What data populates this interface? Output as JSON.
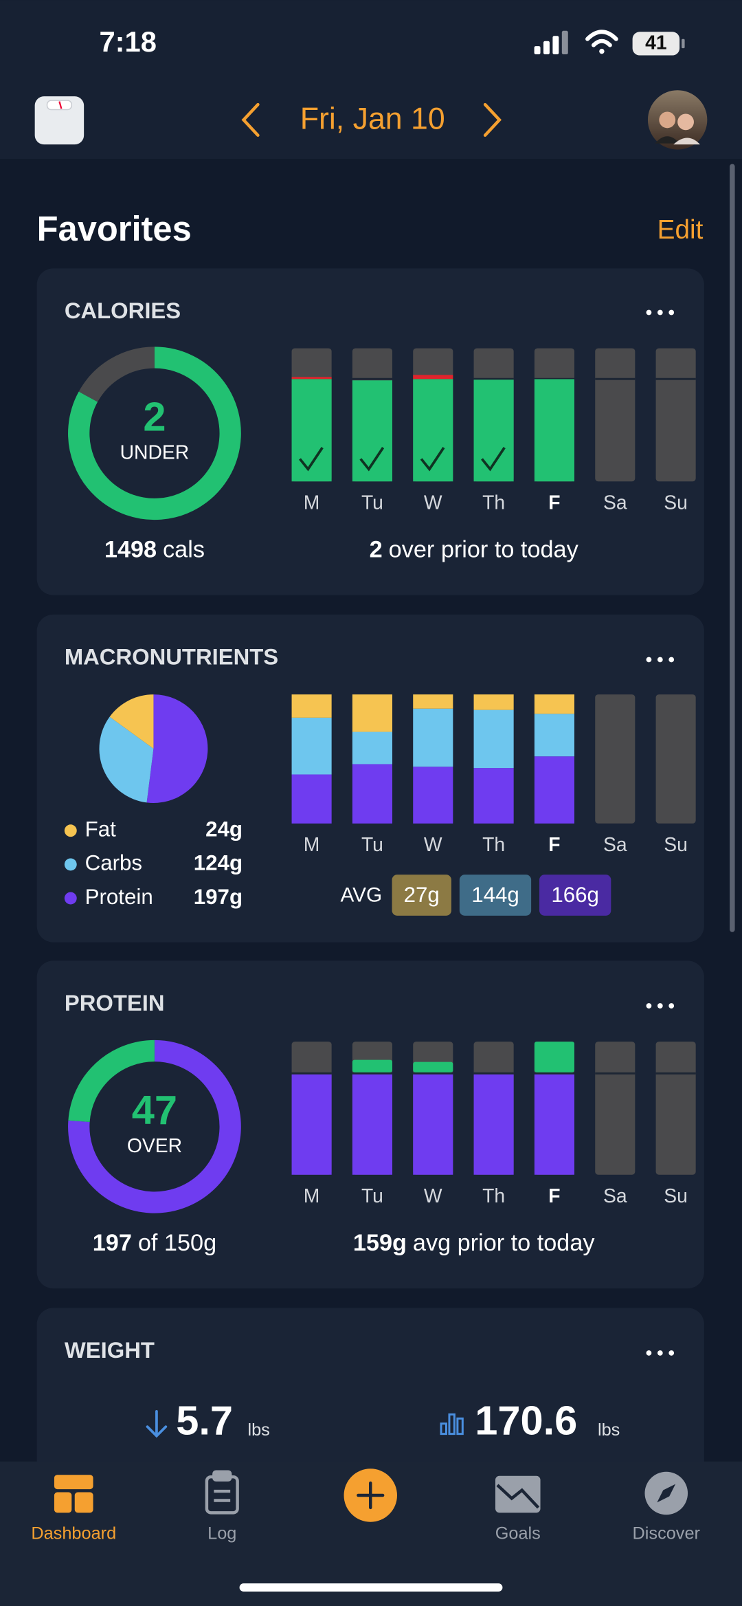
{
  "status_bar": {
    "time": "7:18",
    "battery": "41"
  },
  "nav": {
    "date": "Fri, Jan 10"
  },
  "favorites": {
    "title": "Favorites",
    "edit": "Edit"
  },
  "days": [
    "M",
    "Tu",
    "W",
    "Th",
    "F",
    "Sa",
    "Su"
  ],
  "today": "F",
  "calories": {
    "title": "CALORIES",
    "ring_number": 2,
    "ring_label": "UNDER",
    "ring_progress": 83,
    "total": 1498,
    "total_unit": "cals",
    "over_count": 2,
    "over_text": "over prior to today",
    "bars": {
      "values": [
        1530,
        1480,
        1560,
        1490,
        1498,
        null,
        null
      ],
      "target": 1500,
      "ylim": [
        0,
        1950
      ],
      "checked": [
        true,
        true,
        true,
        true,
        false,
        false,
        false
      ]
    }
  },
  "macros": {
    "title": "MACRONUTRIENTS",
    "legend": [
      {
        "name": "Fat",
        "amount": "24g",
        "color": "#f6c451",
        "share": 15
      },
      {
        "name": "Carbs",
        "amount": "124g",
        "color": "#6ec6ee",
        "share": 33
      },
      {
        "name": "Protein",
        "amount": "197g",
        "color": "#6f3cf0",
        "share": 52
      }
    ],
    "bars": {
      "ylim": [
        0,
        100
      ],
      "series": [
        {
          "name": "Fat",
          "color": "#f6c451",
          "values": [
            18,
            29,
            11,
            12,
            15,
            null,
            null
          ]
        },
        {
          "name": "Carbs",
          "color": "#6ec6ee",
          "values": [
            44,
            25,
            45,
            45,
            33,
            null,
            null
          ]
        },
        {
          "name": "Protein",
          "color": "#6f3cf0",
          "values": [
            38,
            46,
            44,
            43,
            52,
            null,
            null
          ]
        }
      ]
    },
    "avg_label": "AVG",
    "avg": [
      {
        "label": "27g",
        "color": "#8c7a44"
      },
      {
        "label": "144g",
        "color": "#3f6c88"
      },
      {
        "label": "166g",
        "color": "#4a2aa2"
      }
    ]
  },
  "protein": {
    "title": "PROTEIN",
    "ring_number": 47,
    "ring_label": "OVER",
    "consumed": 197,
    "of_text": "of 150g",
    "avg": "159g",
    "avg_text": "avg prior to today",
    "bars": {
      "values": [
        150,
        170,
        167,
        150,
        197,
        null,
        null
      ],
      "target": 150,
      "ylim": [
        0,
        197
      ]
    }
  },
  "weight": {
    "title": "WEIGHT",
    "change": "5.7",
    "change_unit": "lbs",
    "average": "170.6",
    "average_unit": "lbs"
  },
  "tabs": [
    "Dashboard",
    "Log",
    "Goals",
    "Discover"
  ]
}
